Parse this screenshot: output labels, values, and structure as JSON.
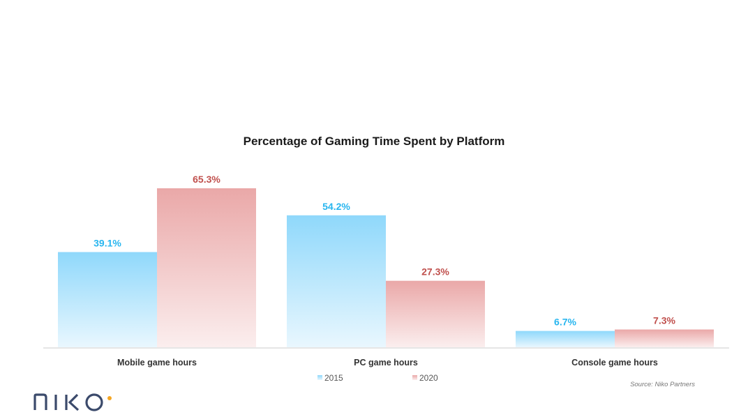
{
  "chart_data": {
    "type": "bar",
    "title": "Percentage of Gaming Time Spent by Platform",
    "categories": [
      "Mobile game hours",
      "PC game hours",
      "Console game hours"
    ],
    "series": [
      {
        "name": "2015",
        "values": [
          39.1,
          54.2,
          6.7
        ],
        "labels": [
          "39.1%",
          "54.2%",
          "6.7%"
        ],
        "color": "#29b6ef"
      },
      {
        "name": "2020",
        "values": [
          65.3,
          27.3,
          7.3
        ],
        "labels": [
          "65.3%",
          "27.3%",
          "7.3%"
        ],
        "color": "#c0504d"
      }
    ],
    "ylim": [
      0,
      70
    ],
    "grid": false,
    "legend": "bottom-center",
    "xlabel": "",
    "ylabel": ""
  },
  "source": "Source: Niko Partners",
  "logo": {
    "text": "NIKO",
    "accent_color": "#f5a623"
  },
  "colors": {
    "bar_2015_top": "#8fd8fb",
    "bar_2015_bottom": "#e9f7fe",
    "bar_2020_top": "#eaa8a8",
    "bar_2020_bottom": "#fbeeee",
    "axis": "#cccccc"
  }
}
